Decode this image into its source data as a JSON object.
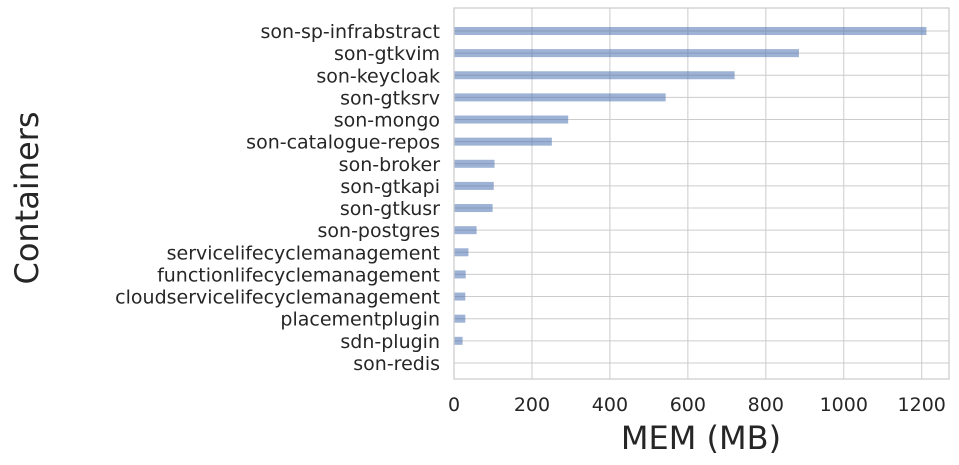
{
  "chart_data": {
    "type": "bar",
    "orientation": "horizontal",
    "title": "",
    "xlabel": "MEM (MB)",
    "ylabel": "Containers",
    "xlim": [
      0,
      1270
    ],
    "xticks": [
      0,
      200,
      400,
      600,
      800,
      1000,
      1200
    ],
    "grid": true,
    "bar_color": "#4c72b0",
    "categories": [
      "son-sp-infrabstract",
      "son-gtkvim",
      "son-keycloak",
      "son-gtksrv",
      "son-mongo",
      "son-catalogue-repos",
      "son-broker",
      "son-gtkapi",
      "son-gtkusr",
      "son-postgres",
      "servicelifecyclemanagement",
      "functionlifecyclemanagement",
      "cloudservicelifecyclemanagement",
      "placementplugin",
      "sdn-plugin",
      "son-redis"
    ],
    "values": [
      1212,
      885,
      720,
      543,
      293,
      251,
      104,
      102,
      99,
      58,
      37,
      30,
      29,
      29,
      22,
      0
    ]
  }
}
